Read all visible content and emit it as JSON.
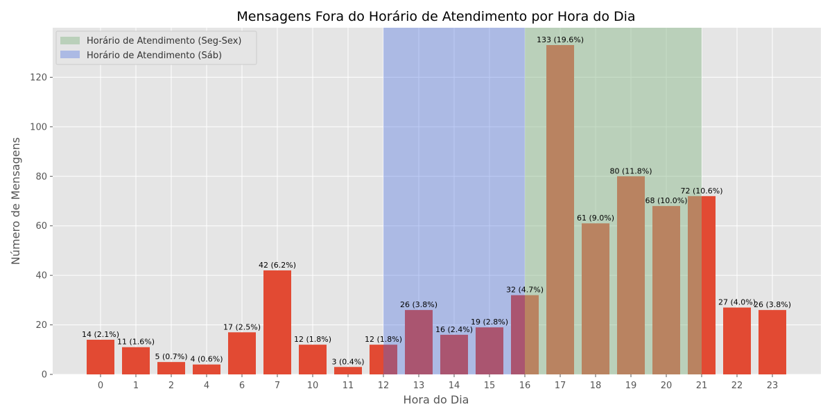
{
  "chart_data": {
    "type": "bar",
    "title": "Mensagens Fora do Horário de Atendimento por Hora do Dia",
    "xlabel": "Hora do Dia",
    "ylabel": "Número de Mensagens",
    "categories": [
      "0",
      "1",
      "2",
      "4",
      "6",
      "7",
      "10",
      "11",
      "12",
      "13",
      "14",
      "15",
      "16",
      "17",
      "18",
      "19",
      "20",
      "21",
      "22",
      "23"
    ],
    "values": [
      14,
      11,
      5,
      4,
      17,
      42,
      12,
      3,
      12,
      26,
      16,
      19,
      32,
      133,
      61,
      80,
      68,
      72,
      27,
      26
    ],
    "data_labels": [
      "14 (2.1%)",
      "11 (1.6%)",
      "5 (0.7%)",
      "4 (0.6%)",
      "17 (2.5%)",
      "42 (6.2%)",
      "12 (1.8%)",
      "3 (0.4%)",
      "12 (1.8%)",
      "26 (3.8%)",
      "16 (2.4%)",
      "19 (2.8%)",
      "32 (4.7%)",
      "133 (19.6%)",
      "61 (9.0%)",
      "80 (11.8%)",
      "68 (10.0%)",
      "72 (10.6%)",
      "27 (4.0%)",
      "26 (3.8%)"
    ],
    "ylim": [
      0,
      140
    ],
    "yticks": [
      0,
      20,
      40,
      60,
      80,
      100,
      120
    ],
    "grid": true,
    "bar_color": "#E24A33",
    "background_color": "#E5E5E5",
    "shaded_regions": [
      {
        "label": "Horário de Atendimento (Seg-Sex)",
        "from": "16",
        "to": "21",
        "color": "#8FBC8F",
        "alpha": 0.5
      },
      {
        "label": "Horário de Atendimento (Sáb)",
        "from": "12",
        "to": "16",
        "color": "#4169E1",
        "alpha": 0.35
      }
    ],
    "legend_position": "top-left"
  }
}
